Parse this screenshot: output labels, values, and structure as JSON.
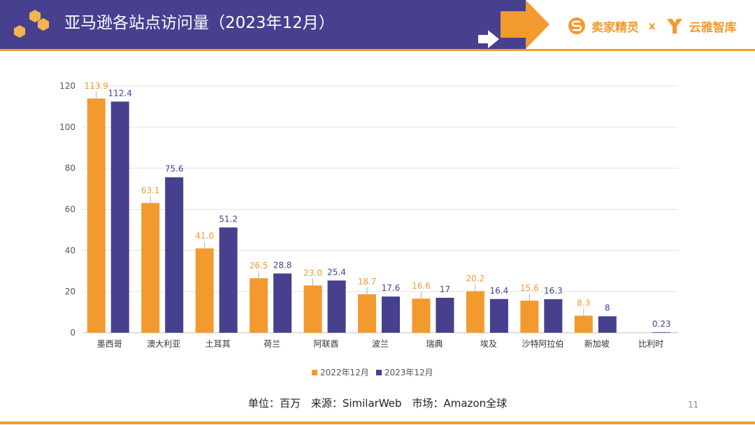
{
  "header": {
    "title": "亚马逊各站点访问量（2023年12月）",
    "brand_left": "卖家精灵",
    "separator": "x",
    "brand_right": "云雅智库",
    "colors": {
      "band": "#46408e",
      "accent": "#f29a2e"
    },
    "icons": [
      "hexagon-cluster-icon",
      "arrow-right-icon",
      "sellersprite-logo-icon",
      "yunya-logo-icon"
    ]
  },
  "chart_data": {
    "type": "bar",
    "categories": [
      "墨西哥",
      "澳大利亚",
      "土耳其",
      "荷兰",
      "阿联酋",
      "波兰",
      "瑞典",
      "埃及",
      "沙特阿拉伯",
      "新加坡",
      "比利时"
    ],
    "series": [
      {
        "name": "2022年12月",
        "color": "#f29a2e",
        "values": [
          113.9,
          63.1,
          41.0,
          26.5,
          23.0,
          18.7,
          16.6,
          20.2,
          15.6,
          8.3,
          null
        ],
        "labels": [
          "113.9",
          "63.1",
          "41.0",
          "26.5",
          "23.0",
          "18.7",
          "16.6",
          "20.2",
          "15.6",
          "8.3",
          ""
        ]
      },
      {
        "name": "2023年12月",
        "color": "#46408e",
        "values": [
          112.4,
          75.6,
          51.2,
          28.8,
          25.4,
          17.6,
          17,
          16.4,
          16.3,
          8,
          0.23
        ],
        "labels": [
          "112.4",
          "75.6",
          "51.2",
          "28.8",
          "25.4",
          "17.6",
          "17",
          "16.4",
          "16.3",
          "8",
          "0.23"
        ]
      }
    ],
    "yticks": [
      "0",
      "20",
      "40",
      "60",
      "80",
      "100",
      "120"
    ],
    "ylim": [
      0,
      120
    ],
    "grid": true,
    "legend": "bottom"
  },
  "footer": {
    "source": "单位：百万　来源：SimilarWeb　市场：Amazon全球",
    "page_number": "11"
  }
}
